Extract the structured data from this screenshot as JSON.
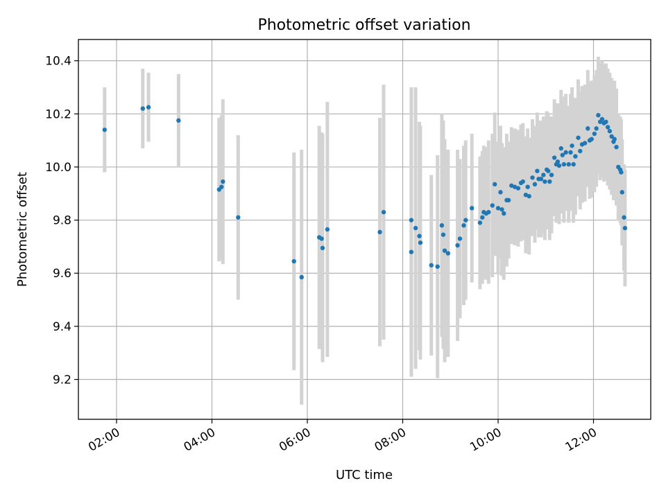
{
  "chart_data": {
    "type": "scatter",
    "title": "Photometric offset variation",
    "xlabel": "UTC time",
    "ylabel": "Photometric offset",
    "x_unit": "hours UTC",
    "xlim": [
      1.2,
      13.2
    ],
    "ylim": [
      9.05,
      10.48
    ],
    "x_ticks": [
      {
        "value": 2,
        "label": "02:00"
      },
      {
        "value": 4,
        "label": "04:00"
      },
      {
        "value": 6,
        "label": "06:00"
      },
      {
        "value": 8,
        "label": "08:00"
      },
      {
        "value": 10,
        "label": "10:00"
      },
      {
        "value": 12,
        "label": "12:00"
      }
    ],
    "y_ticks": [
      {
        "value": 9.2,
        "label": "9.2"
      },
      {
        "value": 9.4,
        "label": "9.4"
      },
      {
        "value": 9.6,
        "label": "9.6"
      },
      {
        "value": 9.8,
        "label": "9.8"
      },
      {
        "value": 10.0,
        "label": "10.0"
      },
      {
        "value": 10.2,
        "label": "10.2"
      },
      {
        "value": 10.4,
        "label": "10.4"
      }
    ],
    "grid": true,
    "colors": {
      "points": "#1f77b4",
      "errorbars": "#d3d3d3"
    },
    "points": [
      [
        1.75,
        10.14,
        0.16
      ],
      [
        2.55,
        10.22,
        0.15
      ],
      [
        2.67,
        10.225,
        0.13
      ],
      [
        3.3,
        10.175,
        0.175
      ],
      [
        4.15,
        9.915,
        0.27
      ],
      [
        4.2,
        9.925,
        0.27
      ],
      [
        4.23,
        9.945,
        0.31
      ],
      [
        4.55,
        9.81,
        0.31
      ],
      [
        5.72,
        9.645,
        0.41
      ],
      [
        5.88,
        9.585,
        0.48
      ],
      [
        6.25,
        9.735,
        0.42
      ],
      [
        6.3,
        9.73,
        0.4
      ],
      [
        6.32,
        9.695,
        0.43
      ],
      [
        6.42,
        9.765,
        0.48
      ],
      [
        7.52,
        9.755,
        0.43
      ],
      [
        7.6,
        9.83,
        0.48
      ],
      [
        8.18,
        9.8,
        0.5
      ],
      [
        8.18,
        9.68,
        0.47
      ],
      [
        8.27,
        9.77,
        0.53
      ],
      [
        8.35,
        9.74,
        0.43
      ],
      [
        8.37,
        9.715,
        0.44
      ],
      [
        8.6,
        9.63,
        0.34
      ],
      [
        8.73,
        9.625,
        0.42
      ],
      [
        8.82,
        9.78,
        0.42
      ],
      [
        8.85,
        9.745,
        0.43
      ],
      [
        8.88,
        9.685,
        0.42
      ],
      [
        8.95,
        9.675,
        0.39
      ],
      [
        9.15,
        9.705,
        0.36
      ],
      [
        9.2,
        9.73,
        0.3
      ],
      [
        9.28,
        9.78,
        0.3
      ],
      [
        9.32,
        9.8,
        0.3
      ],
      [
        9.45,
        9.845,
        0.28
      ],
      [
        9.62,
        9.79,
        0.25
      ],
      [
        9.67,
        9.81,
        0.25
      ],
      [
        9.7,
        9.83,
        0.25
      ],
      [
        9.75,
        9.825,
        0.25
      ],
      [
        9.8,
        9.83,
        0.27
      ],
      [
        9.88,
        9.855,
        0.27
      ],
      [
        9.93,
        9.935,
        0.27
      ],
      [
        10.0,
        9.845,
        0.25
      ],
      [
        10.05,
        9.905,
        0.25
      ],
      [
        10.08,
        9.84,
        0.25
      ],
      [
        10.12,
        9.825,
        0.25
      ],
      [
        10.18,
        9.875,
        0.25
      ],
      [
        10.22,
        9.875,
        0.22
      ],
      [
        10.28,
        9.93,
        0.22
      ],
      [
        10.35,
        9.925,
        0.22
      ],
      [
        10.42,
        9.92,
        0.22
      ],
      [
        10.48,
        9.94,
        0.22
      ],
      [
        10.52,
        9.945,
        0.22
      ],
      [
        10.58,
        9.895,
        0.22
      ],
      [
        10.62,
        9.925,
        0.22
      ],
      [
        10.65,
        9.89,
        0.22
      ],
      [
        10.72,
        9.96,
        0.22
      ],
      [
        10.77,
        9.935,
        0.22
      ],
      [
        10.82,
        9.985,
        0.22
      ],
      [
        10.85,
        9.955,
        0.22
      ],
      [
        10.9,
        9.955,
        0.22
      ],
      [
        10.95,
        9.97,
        0.22
      ],
      [
        10.98,
        9.945,
        0.22
      ],
      [
        11.02,
        9.99,
        0.22
      ],
      [
        11.05,
        9.985,
        0.22
      ],
      [
        11.08,
        9.945,
        0.22
      ],
      [
        11.12,
        9.97,
        0.22
      ],
      [
        11.18,
        10.035,
        0.22
      ],
      [
        11.22,
        10.01,
        0.22
      ],
      [
        11.25,
        10.02,
        0.22
      ],
      [
        11.28,
        10.005,
        0.22
      ],
      [
        11.32,
        10.07,
        0.22
      ],
      [
        11.35,
        10.045,
        0.22
      ],
      [
        11.38,
        10.01,
        0.22
      ],
      [
        11.42,
        10.055,
        0.22
      ],
      [
        11.48,
        10.01,
        0.22
      ],
      [
        11.52,
        10.055,
        0.22
      ],
      [
        11.55,
        10.08,
        0.22
      ],
      [
        11.58,
        10.01,
        0.22
      ],
      [
        11.62,
        10.04,
        0.22
      ],
      [
        11.68,
        10.11,
        0.22
      ],
      [
        11.72,
        10.06,
        0.22
      ],
      [
        11.76,
        10.085,
        0.22
      ],
      [
        11.82,
        10.09,
        0.22
      ],
      [
        11.88,
        10.145,
        0.22
      ],
      [
        11.92,
        10.1,
        0.22
      ],
      [
        11.96,
        10.105,
        0.22
      ],
      [
        12.02,
        10.125,
        0.22
      ],
      [
        12.06,
        10.145,
        0.22
      ],
      [
        12.1,
        10.195,
        0.22
      ],
      [
        12.14,
        10.17,
        0.22
      ],
      [
        12.18,
        10.18,
        0.22
      ],
      [
        12.22,
        10.165,
        0.22
      ],
      [
        12.26,
        10.17,
        0.22
      ],
      [
        12.3,
        10.15,
        0.22
      ],
      [
        12.34,
        10.135,
        0.22
      ],
      [
        12.38,
        10.115,
        0.22
      ],
      [
        12.42,
        10.095,
        0.22
      ],
      [
        12.44,
        10.105,
        0.22
      ],
      [
        12.48,
        10.075,
        0.22
      ],
      [
        12.52,
        10.0,
        0.2
      ],
      [
        12.56,
        9.99,
        0.2
      ],
      [
        12.58,
        9.98,
        0.2
      ],
      [
        12.6,
        9.905,
        0.2
      ],
      [
        12.64,
        9.81,
        0.2
      ],
      [
        12.66,
        9.77,
        0.22
      ]
    ]
  }
}
